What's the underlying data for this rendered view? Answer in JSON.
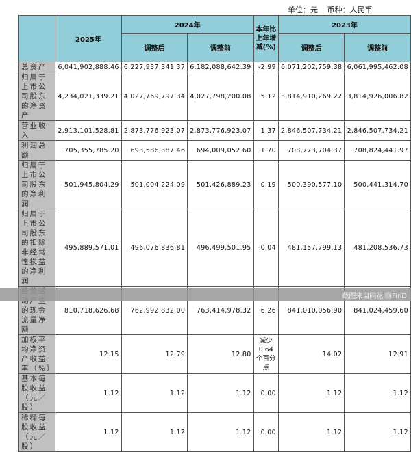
{
  "unit_line": {
    "unit": "单位：元",
    "currency": "币种：人民币"
  },
  "header": {
    "y2025": "2025年",
    "y2024": "2024年",
    "change": "本年比上年增减(%)",
    "y2023": "2023年",
    "adjusted_after": "调整后",
    "adjusted_before": "调整前"
  },
  "rows": [
    {
      "label": "总资产",
      "v2025": "6,041,902,888.46",
      "v2024_after": "6,227,937,341.37",
      "v2024_before": "6,182,088,642.39",
      "change": "-2.99",
      "v2023_after": "6,071,202,759.38",
      "v2023_before": "6,061,995,462.08"
    },
    {
      "label": "归属于上市公司股东的净资产",
      "v2025": "4,234,021,339.21",
      "v2024_after": "4,027,769,797.34",
      "v2024_before": "4,027,798,200.08",
      "change": "5.12",
      "v2023_after": "3,814,910,269.22",
      "v2023_before": "3,814,926,006.82"
    },
    {
      "label": "营业收入",
      "v2025": "2,913,101,528.81",
      "v2024_after": "2,873,776,923.07",
      "v2024_before": "2,873,776,923.07",
      "change": "1.37",
      "v2023_after": "2,846,507,734.21",
      "v2023_before": "2,846,507,734.21"
    },
    {
      "label": "利润总额",
      "v2025": "705,355,785.20",
      "v2024_after": "693,586,387.46",
      "v2024_before": "694,009,052.60",
      "change": "1.70",
      "v2023_after": "708,773,704.37",
      "v2023_before": "708,824,441.97"
    },
    {
      "label": "归属于上市公司股东的净利润",
      "v2025": "501,945,804.29",
      "v2024_after": "501,004,224.09",
      "v2024_before": "501,426,889.23",
      "change": "0.19",
      "v2023_after": "500,390,577.10",
      "v2023_before": "500,441,314.70"
    },
    {
      "label": "归属于上市公司股东的扣除非经常性损益的净利润",
      "v2025": "495,889,571.01",
      "v2024_after": "496,076,836.81",
      "v2024_before": "496,499,501.95",
      "change": "-0.04",
      "v2023_after": "481,157,799.13",
      "v2023_before": "481,208,536.73"
    },
    {
      "label": "经营活动产生的现金流量净额",
      "v2025": "810,718,626.68",
      "v2024_after": "762,992,832.00",
      "v2024_before": "763,414,978.32",
      "change": "6.26",
      "v2023_after": "841,010,056.90",
      "v2023_before": "841,024,459.60"
    },
    {
      "label": "加权平均净资产收益率（%）",
      "v2025": "12.15",
      "v2024_after": "12.79",
      "v2024_before": "12.80",
      "change": "减少0.64个百分点",
      "v2023_after": "14.02",
      "v2023_before": "12.91"
    },
    {
      "label": "基本每股收益（元／股）",
      "v2025": "1.12",
      "v2024_after": "1.12",
      "v2024_before": "1.12",
      "change": "0.00",
      "v2023_after": "1.12",
      "v2023_before": "1.12"
    },
    {
      "label": "稀释每股收益（元／股）",
      "v2025": "1.12",
      "v2024_after": "1.12",
      "v2024_before": "1.12",
      "change": "0.00",
      "v2023_after": "1.12",
      "v2023_before": "1.12"
    }
  ],
  "watermark": "截图来自同花顺iFinD"
}
